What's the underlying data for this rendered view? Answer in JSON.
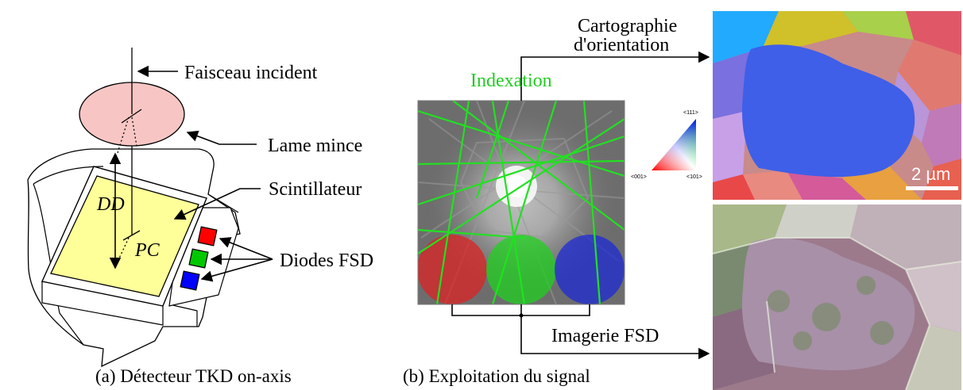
{
  "panel_a": {
    "caption": "(a) Détecteur TKD on-axis",
    "labels": {
      "beam": "Faisceau incident",
      "foil": "Lame mince",
      "scintillator": "Scintillateur",
      "diodes": "Diodes FSD",
      "dd": "DD",
      "pc": "PC"
    }
  },
  "panel_b": {
    "caption": "(b) Exploitation du signal",
    "labels": {
      "indexation": "Indexation",
      "orientation_line1": "Cartographie",
      "orientation_line2": "d'orientation",
      "fsd_imaging": "Imagerie FSD",
      "scale_bar": "2 µm"
    },
    "ipf_key": {
      "top": "<111>",
      "left": "<001>",
      "right": "<101>"
    }
  },
  "colors": {
    "foil": "#f7c6c4",
    "scintillator": "#ffff99",
    "diode_red": "#ff0000",
    "diode_green": "#00c800",
    "diode_blue": "#0000ff",
    "kikuchi_lines": "#22e022",
    "indexation_text": "#22cc22"
  }
}
